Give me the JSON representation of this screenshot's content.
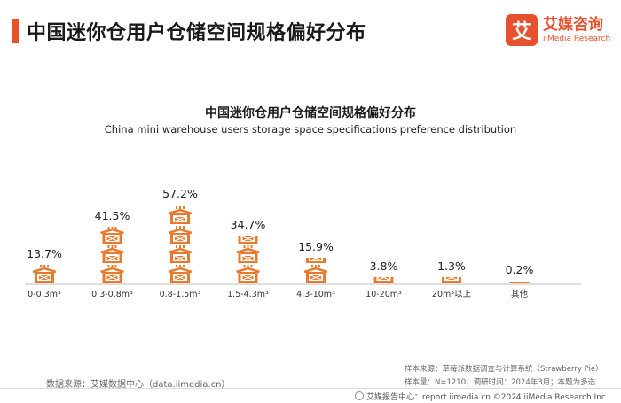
{
  "header": {
    "title": "中国迷你仓用户仓储空间规格偏好分布"
  },
  "logo": {
    "mark": "艾",
    "name_cn": "艾媒咨询",
    "name_en": "iiMedia Research"
  },
  "chart_data": {
    "type": "bar",
    "title": "中国迷你仓用户仓储空间规格偏好分布",
    "subtitle": "China mini warehouse users storage space specifications preference distribution",
    "categories": [
      "0-0.3m³",
      "0.3-0.8m³",
      "0.8-1.5m³",
      "1.5-4.3m³",
      "4.3-10m³",
      "10-20m³",
      "20m³以上",
      "其他"
    ],
    "values": [
      13.7,
      41.5,
      57.2,
      34.7,
      15.9,
      3.8,
      1.3,
      0.2
    ],
    "value_labels": [
      "13.7%",
      "41.5%",
      "57.2%",
      "34.7%",
      "15.9%",
      "3.8%",
      "1.3%",
      "0.2%"
    ],
    "unit": "%",
    "ylim": [
      0,
      60
    ],
    "bar_style": "stacked warehouse pictograms",
    "color": "#e8792f",
    "grid": false
  },
  "source": "数据来源：艾媒数据中心（data.iimedia.cn）",
  "notes": [
    "样本来源：草莓派数据调查与计算系统（Strawberry Pie）",
    "样本量：N=1210；调研时间：2024年3月；本题为多选"
  ],
  "footer": "艾媒报告中心：report.iimedia.cn  ©2024  iiMedia Research  Inc"
}
